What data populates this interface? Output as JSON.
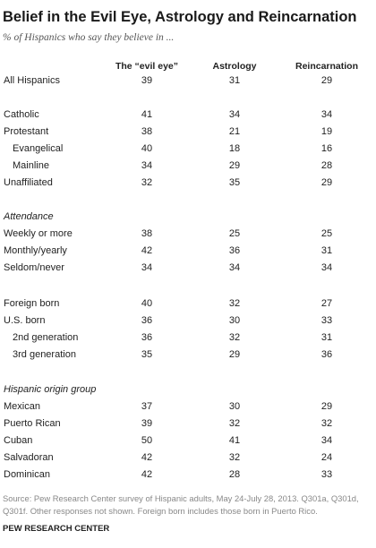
{
  "title": "Belief in the Evil Eye, Astrology and Reincarnation",
  "subtitle": "% of Hispanics who say they believe in ...",
  "columns": [
    "The “evil eye”",
    "Astrology",
    "Reincarnation"
  ],
  "rows": [
    {
      "label": "All Hispanics",
      "evil_eye": "39",
      "astrology": "31",
      "reincarnation": "29"
    },
    {
      "label": "Catholic",
      "evil_eye": "41",
      "astrology": "34",
      "reincarnation": "34"
    },
    {
      "label": "Protestant",
      "evil_eye": "38",
      "astrology": "21",
      "reincarnation": "19"
    },
    {
      "label": "Evangelical",
      "evil_eye": "40",
      "astrology": "18",
      "reincarnation": "16"
    },
    {
      "label": "Mainline",
      "evil_eye": "34",
      "astrology": "29",
      "reincarnation": "28"
    },
    {
      "label": "Unaffiliated",
      "evil_eye": "32",
      "astrology": "35",
      "reincarnation": "29"
    },
    {
      "label": "Weekly or more",
      "evil_eye": "38",
      "astrology": "25",
      "reincarnation": "25"
    },
    {
      "label": "Monthly/yearly",
      "evil_eye": "42",
      "astrology": "36",
      "reincarnation": "31"
    },
    {
      "label": "Seldom/never",
      "evil_eye": "34",
      "astrology": "34",
      "reincarnation": "34"
    },
    {
      "label": "Foreign born",
      "evil_eye": "40",
      "astrology": "32",
      "reincarnation": "27"
    },
    {
      "label": "U.S. born",
      "evil_eye": "36",
      "astrology": "30",
      "reincarnation": "33"
    },
    {
      "label": "2nd generation",
      "evil_eye": "36",
      "astrology": "32",
      "reincarnation": "31"
    },
    {
      "label": "3rd generation",
      "evil_eye": "35",
      "astrology": "29",
      "reincarnation": "36"
    },
    {
      "label": "Mexican",
      "evil_eye": "37",
      "astrology": "30",
      "reincarnation": "29"
    },
    {
      "label": "Puerto Rican",
      "evil_eye": "39",
      "astrology": "32",
      "reincarnation": "32"
    },
    {
      "label": "Cuban",
      "evil_eye": "50",
      "astrology": "41",
      "reincarnation": "34"
    },
    {
      "label": "Salvadoran",
      "evil_eye": "42",
      "astrology": "32",
      "reincarnation": "24"
    },
    {
      "label": "Dominican",
      "evil_eye": "42",
      "astrology": "28",
      "reincarnation": "33"
    }
  ],
  "sections": [
    "Attendance",
    "Hispanic origin group"
  ],
  "source": "Source: Pew Research Center survey of Hispanic adults, May 24-July 28, 2013. Q301a, Q301d, Q301f. Other responses not shown. Foreign born includes those born in Puerto Rico.",
  "brand": "PEW RESEARCH CENTER"
}
